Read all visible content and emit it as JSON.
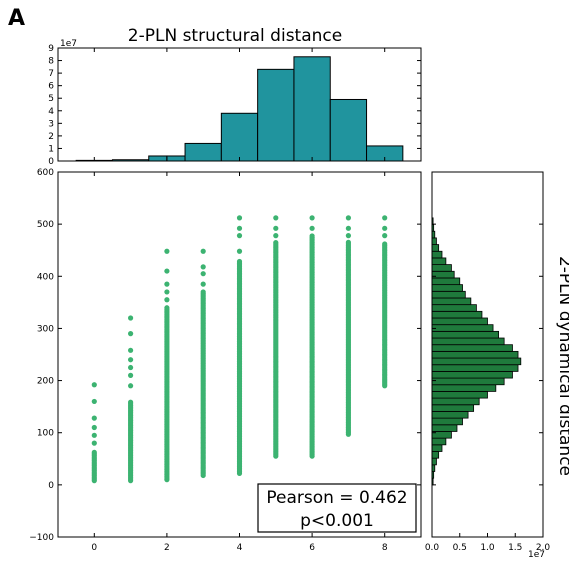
{
  "panel_label": "A",
  "chart_data": [
    {
      "type": "bar",
      "name": "top-histogram",
      "title": "2-PLN structural distance",
      "ylabel": "",
      "xlabel": "",
      "offset_label": "1e7",
      "bar_color": "#20949e",
      "bins": [
        [
          -0.5,
          0.5
        ],
        [
          0.5,
          1.5
        ],
        [
          1.5,
          2.0
        ],
        [
          2.0,
          2.5
        ],
        [
          2.5,
          3.5
        ],
        [
          3.5,
          4.5
        ],
        [
          4.5,
          5.5
        ],
        [
          5.5,
          6.5
        ],
        [
          6.5,
          7.5
        ],
        [
          7.5,
          8.5
        ]
      ],
      "values": [
        0.05,
        0.1,
        0.4,
        0.4,
        1.4,
        3.8,
        7.3,
        8.3,
        4.9,
        1.2
      ],
      "ylim": [
        0,
        9
      ],
      "yticks": [
        "0",
        "1",
        "2",
        "3",
        "4",
        "5",
        "6",
        "7",
        "8",
        "9"
      ]
    },
    {
      "type": "scatter",
      "name": "main-scatter",
      "point_color": "#3cb371",
      "xlim": [
        -1,
        9
      ],
      "ylim": [
        -100,
        600
      ],
      "xticks": [
        "0",
        "2",
        "4",
        "6",
        "8"
      ],
      "yticks": [
        "−100",
        "0",
        "100",
        "200",
        "300",
        "400",
        "500",
        "600"
      ],
      "columns": [
        {
          "x": 0,
          "ymin": 8,
          "ymax": 65,
          "extra": [
            80,
            95,
            110,
            128,
            160,
            192
          ]
        },
        {
          "x": 1,
          "ymin": 8,
          "ymax": 160,
          "extra": [
            190,
            210,
            225,
            240,
            258,
            290,
            320
          ]
        },
        {
          "x": 2,
          "ymin": 10,
          "ymax": 340,
          "extra": [
            355,
            370,
            385,
            410,
            448
          ]
        },
        {
          "x": 3,
          "ymin": 18,
          "ymax": 370,
          "extra": [
            385,
            405,
            418,
            448
          ]
        },
        {
          "x": 4,
          "ymin": 22,
          "ymax": 430,
          "extra": [
            448,
            478,
            492,
            512
          ]
        },
        {
          "x": 5,
          "ymin": 55,
          "ymax": 465,
          "extra": [
            478,
            492,
            512
          ]
        },
        {
          "x": 6,
          "ymin": 55,
          "ymax": 480,
          "extra": [
            492,
            512
          ]
        },
        {
          "x": 7,
          "ymin": 97,
          "ymax": 465,
          "extra": [
            478,
            492,
            512
          ]
        },
        {
          "x": 8,
          "ymin": 190,
          "ymax": 465,
          "extra": [
            478,
            492,
            512
          ]
        }
      ],
      "annotation": {
        "line1": "Pearson = 0.462",
        "line2": "p<0.001"
      }
    },
    {
      "type": "bar",
      "orientation": "horizontal",
      "name": "right-histogram",
      "ylabel": "2-PLN dynamical distance",
      "offset_label": "1e7",
      "bar_color": "#1f7a3c",
      "xlim": [
        0,
        2.0
      ],
      "xticks": [
        "0.0",
        "0.5",
        "1.0",
        "1.5",
        "2.0"
      ],
      "bin_edges_start": 0,
      "bin_width": 12.8,
      "values": [
        0.02,
        0.03,
        0.05,
        0.08,
        0.12,
        0.18,
        0.25,
        0.35,
        0.45,
        0.55,
        0.65,
        0.75,
        0.85,
        1.0,
        1.15,
        1.3,
        1.45,
        1.55,
        1.6,
        1.55,
        1.45,
        1.3,
        1.2,
        1.1,
        1.0,
        0.9,
        0.8,
        0.7,
        0.6,
        0.55,
        0.5,
        0.4,
        0.35,
        0.25,
        0.18,
        0.12,
        0.08,
        0.05,
        0.03,
        0.02
      ]
    }
  ]
}
